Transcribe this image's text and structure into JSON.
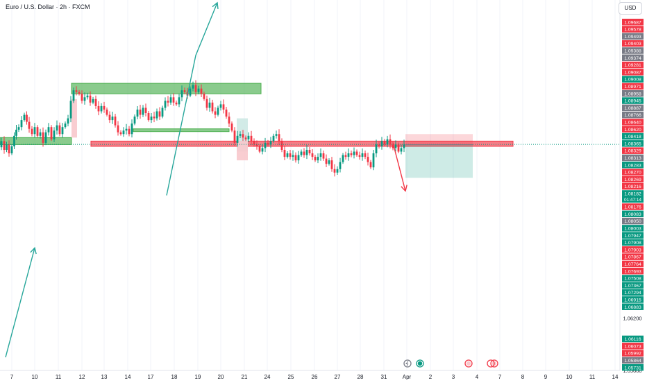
{
  "header": {
    "title": "Euro / U.S. Dollar · 2h · FXCM",
    "currency_button": "USD"
  },
  "countdown": "01:47:14",
  "colors": {
    "bull": "#089981",
    "bear": "#f23645",
    "neutral": "#787b86",
    "zone_green": "#4caf50",
    "zone_red": "#f23645",
    "teal_line": "#26a69a"
  },
  "event_icons": [
    "lightning-icon",
    "eu-flag-icon",
    "us-flag-icon",
    "us-flag-icon"
  ],
  "chart_data": {
    "type": "candlestick",
    "symbol": "EURUSD",
    "timeframe": "2h",
    "ylim": [
      1.056,
      1.098
    ],
    "x_ticks": [
      "7",
      "10",
      "11",
      "12",
      "13",
      "14",
      "17",
      "18",
      "19",
      "20",
      "21",
      "24",
      "25",
      "26",
      "27",
      "28",
      "31",
      "Apr",
      "2",
      "3",
      "4",
      "7",
      "8",
      "9",
      "10",
      "11",
      "14"
    ],
    "y_ticks": [
      1.064,
      1.062,
      1.056
    ],
    "last_price": 1.08182,
    "price_labels": [
      {
        "value": 1.09687,
        "color": "#f23645"
      },
      {
        "value": 1.09578,
        "color": "#f23645"
      },
      {
        "value": 1.09493,
        "color": "#787b86"
      },
      {
        "value": 1.09403,
        "color": "#f23645"
      },
      {
        "value": 1.09388,
        "color": "#787b86"
      },
      {
        "value": 1.09374,
        "color": "#787b86"
      },
      {
        "value": 1.09281,
        "color": "#f23645"
      },
      {
        "value": 1.09087,
        "color": "#f23645"
      },
      {
        "value": 1.09008,
        "color": "#089981"
      },
      {
        "value": 1.08971,
        "color": "#f23645"
      },
      {
        "value": 1.08958,
        "color": "#787b86"
      },
      {
        "value": 1.08945,
        "color": "#089981"
      },
      {
        "value": 1.08887,
        "color": "#787b86"
      },
      {
        "value": 1.08766,
        "color": "#787b86"
      },
      {
        "value": 1.0864,
        "color": "#f23645"
      },
      {
        "value": 1.0862,
        "color": "#f23645"
      },
      {
        "value": 1.08418,
        "color": "#089981"
      },
      {
        "value": 1.08365,
        "color": "#089981"
      },
      {
        "value": 1.08329,
        "color": "#f23645"
      },
      {
        "value": 1.08313,
        "color": "#787b86"
      },
      {
        "value": 1.08283,
        "color": "#089981"
      },
      {
        "value": 1.0827,
        "color": "#f23645"
      },
      {
        "value": 1.08269,
        "color": "#f23645"
      },
      {
        "value": 1.08216,
        "color": "#f23645"
      },
      {
        "value": 1.08182,
        "color": "#089981"
      },
      {
        "value": 1.08176,
        "color": "#f23645"
      },
      {
        "value": 1.08083,
        "color": "#089981"
      },
      {
        "value": 1.0805,
        "color": "#787b86"
      },
      {
        "value": 1.08003,
        "color": "#089981"
      },
      {
        "value": 1.07947,
        "color": "#089981"
      },
      {
        "value": 1.07908,
        "color": "#089981"
      },
      {
        "value": 1.07903,
        "color": "#f23645"
      },
      {
        "value": 1.07867,
        "color": "#f23645"
      },
      {
        "value": 1.07764,
        "color": "#f23645"
      },
      {
        "value": 1.07693,
        "color": "#f23645"
      },
      {
        "value": 1.07508,
        "color": "#089981"
      },
      {
        "value": 1.07367,
        "color": "#089981"
      },
      {
        "value": 1.07294,
        "color": "#089981"
      },
      {
        "value": 1.06915,
        "color": "#089981"
      },
      {
        "value": 1.06883,
        "color": "#089981"
      },
      {
        "value": 1.06116,
        "color": "#089981"
      },
      {
        "value": 1.06073,
        "color": "#f23645"
      },
      {
        "value": 1.05992,
        "color": "#f23645"
      },
      {
        "value": 1.05864,
        "color": "#787b86"
      },
      {
        "value": 1.05731,
        "color": "#089981"
      }
    ],
    "price_path": [
      [
        0,
        1.0815
      ],
      [
        4,
        1.0822
      ],
      [
        8,
        1.0812
      ],
      [
        11,
        1.0818
      ],
      [
        15,
        1.0808
      ],
      [
        19,
        1.0816
      ],
      [
        22,
        1.0828
      ],
      [
        25,
        1.0835
      ],
      [
        29,
        1.0838
      ],
      [
        33,
        1.0846
      ],
      [
        37,
        1.0852
      ],
      [
        40,
        1.0844
      ],
      [
        44,
        1.0836
      ],
      [
        48,
        1.083
      ],
      [
        52,
        1.0838
      ],
      [
        56,
        1.0828
      ],
      [
        60,
        1.0832
      ],
      [
        64,
        1.082
      ],
      [
        68,
        1.0832
      ],
      [
        72,
        1.0838
      ],
      [
        76,
        1.0824
      ],
      [
        80,
        1.0834
      ],
      [
        84,
        1.084
      ],
      [
        88,
        1.083
      ],
      [
        92,
        1.0838
      ],
      [
        96,
        1.0842
      ],
      [
        100,
        1.0848
      ],
      [
        104,
        1.0868
      ],
      [
        108,
        1.088
      ],
      [
        112,
        1.0878
      ],
      [
        116,
        1.0876
      ],
      [
        120,
        1.0868
      ],
      [
        124,
        1.0872
      ],
      [
        128,
        1.0874
      ],
      [
        132,
        1.0866
      ],
      [
        136,
        1.087
      ],
      [
        140,
        1.0862
      ],
      [
        144,
        1.0856
      ],
      [
        148,
        1.0862
      ],
      [
        152,
        1.0858
      ],
      [
        156,
        1.0852
      ],
      [
        160,
        1.0846
      ],
      [
        164,
        1.085
      ],
      [
        168,
        1.084
      ],
      [
        172,
        1.0832
      ],
      [
        176,
        1.083
      ],
      [
        180,
        1.0834
      ],
      [
        184,
        1.0836
      ],
      [
        188,
        1.083
      ],
      [
        192,
        1.0842
      ],
      [
        196,
        1.085
      ],
      [
        200,
        1.0858
      ],
      [
        204,
        1.0852
      ],
      [
        208,
        1.086
      ],
      [
        212,
        1.0854
      ],
      [
        216,
        1.0846
      ],
      [
        220,
        1.085
      ],
      [
        224,
        1.0848
      ],
      [
        228,
        1.0856
      ],
      [
        232,
        1.085
      ],
      [
        236,
        1.086
      ],
      [
        240,
        1.0868
      ],
      [
        244,
        1.0866
      ],
      [
        248,
        1.0872
      ],
      [
        252,
        1.0866
      ],
      [
        256,
        1.0864
      ],
      [
        260,
        1.0872
      ],
      [
        264,
        1.088
      ],
      [
        268,
        1.0878
      ],
      [
        272,
        1.0874
      ],
      [
        276,
        1.0882
      ],
      [
        280,
        1.0886
      ],
      [
        284,
        1.0878
      ],
      [
        288,
        1.0882
      ],
      [
        292,
        1.0876
      ],
      [
        296,
        1.087
      ],
      [
        300,
        1.086
      ],
      [
        304,
        1.0866
      ],
      [
        308,
        1.0856
      ],
      [
        312,
        1.0852
      ],
      [
        316,
        1.086
      ],
      [
        320,
        1.0864
      ],
      [
        324,
        1.0858
      ],
      [
        328,
        1.085
      ],
      [
        332,
        1.0842
      ],
      [
        336,
        1.0834
      ],
      [
        340,
        1.082
      ],
      [
        344,
        1.0828
      ],
      [
        348,
        1.083
      ],
      [
        352,
        1.0826
      ],
      [
        356,
        1.0824
      ],
      [
        360,
        1.0828
      ],
      [
        364,
        1.0822
      ],
      [
        368,
        1.0818
      ],
      [
        372,
        1.0816
      ],
      [
        376,
        1.081
      ],
      [
        380,
        1.0814
      ],
      [
        384,
        1.082
      ],
      [
        388,
        1.0818
      ],
      [
        392,
        1.0822
      ],
      [
        396,
        1.0828
      ],
      [
        400,
        1.083
      ],
      [
        404,
        1.0822
      ],
      [
        408,
        1.0812
      ],
      [
        412,
        1.0804
      ],
      [
        416,
        1.0808
      ],
      [
        420,
        1.0804
      ],
      [
        424,
        1.0806
      ],
      [
        428,
        1.08
      ],
      [
        432,
        1.0806
      ],
      [
        436,
        1.081
      ],
      [
        440,
        1.0806
      ],
      [
        444,
        1.0812
      ],
      [
        448,
        1.0808
      ],
      [
        452,
        1.0804
      ],
      [
        456,
        1.08
      ],
      [
        460,
        1.0804
      ],
      [
        464,
        1.0808
      ],
      [
        468,
        1.0802
      ],
      [
        472,
        1.0796
      ],
      [
        476,
        1.08
      ],
      [
        480,
        1.079
      ],
      [
        484,
        1.0786
      ],
      [
        488,
        1.079
      ],
      [
        492,
        1.0798
      ],
      [
        496,
        1.0806
      ],
      [
        500,
        1.0804
      ],
      [
        504,
        1.0808
      ],
      [
        508,
        1.0806
      ],
      [
        512,
        1.081
      ],
      [
        516,
        1.0806
      ],
      [
        520,
        1.0804
      ],
      [
        524,
        1.0808
      ],
      [
        528,
        1.0804
      ],
      [
        532,
        1.0798
      ],
      [
        536,
        1.0792
      ],
      [
        540,
        1.0808
      ],
      [
        544,
        1.0818
      ],
      [
        548,
        1.0816
      ],
      [
        552,
        1.0822
      ],
      [
        556,
        1.0818
      ],
      [
        560,
        1.0824
      ],
      [
        564,
        1.0818
      ],
      [
        568,
        1.0814
      ],
      [
        572,
        1.0818
      ],
      [
        576,
        1.081
      ],
      [
        580,
        1.0814
      ],
      [
        584,
        1.0818
      ]
    ],
    "zones": [
      {
        "x0": 0,
        "x1": 103,
        "y0": 1.0826,
        "y1": 1.0818,
        "color": "#4caf50"
      },
      {
        "x0": 103,
        "x1": 376,
        "y0": 1.0888,
        "y1": 1.0876,
        "color": "#4caf50"
      },
      {
        "x0": 192,
        "x1": 330,
        "y0": 1.0836,
        "y1": 1.0834,
        "color": "#4caf50"
      },
      {
        "x0": 131,
        "x1": 739,
        "y0": 1.0822,
        "y1": 1.0816,
        "color": "#f23645"
      }
    ],
    "candle_boxes": [
      {
        "x0": 103,
        "x1": 111,
        "y0": 1.087,
        "y1": 1.0826,
        "color": "#f8c8cc"
      },
      {
        "x0": 341,
        "x1": 357,
        "y0": 1.0848,
        "y1": 1.081,
        "color": "#cde9e4"
      },
      {
        "x0": 341,
        "x1": 357,
        "y0": 1.0822,
        "y1": 1.08,
        "color": "#f8c8cc"
      }
    ],
    "position": {
      "x0": 584,
      "x1": 681,
      "stop_top": 1.083,
      "entry": 1.0818,
      "target_bottom": 1.078
    },
    "drawn_arrows": [
      {
        "points": [
          [
            8,
            1.0575
          ],
          [
            50,
            1.07
          ]
        ],
        "color": "#26a69a"
      },
      {
        "points": [
          [
            240,
            1.076
          ],
          [
            282,
            1.092
          ],
          [
            313,
            1.098
          ]
        ],
        "color": "#26a69a"
      },
      {
        "points": [
          [
            566,
            1.082
          ],
          [
            584,
            1.0765
          ]
        ],
        "color": "#f23645"
      }
    ]
  }
}
